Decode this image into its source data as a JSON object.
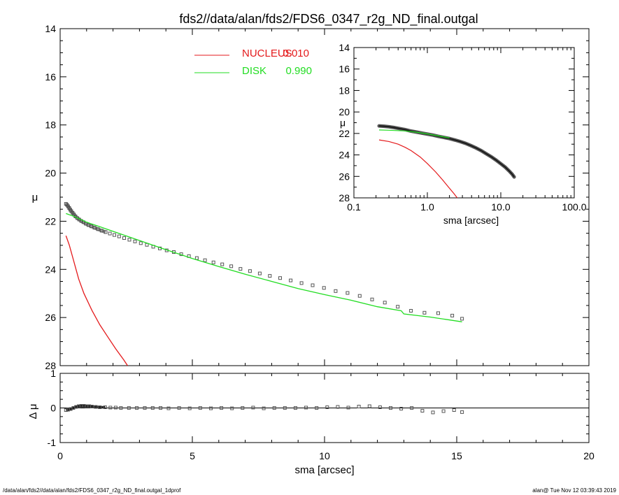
{
  "title": "fds2//data/alan/fds2/FDS6_0347_r2g_ND_final.outgal",
  "footer": {
    "left": "/data/alan/fds2//data/alan/fds2/FDS6_0347_r2g_ND_final.outgal_1dprof",
    "right": "alan@  Tue Nov 12 03:39:43 2019"
  },
  "colors": {
    "nucleus": "#e41a1c",
    "disk": "#22dd22",
    "data": "#555555"
  },
  "chart_data": [
    {
      "id": "main",
      "type": "scatter",
      "xlabel": "sma [arcsec]",
      "ylabel": "μ",
      "xlim": [
        0,
        20
      ],
      "ylim": [
        28,
        14
      ],
      "xticks": [
        "0",
        "5",
        "10",
        "15",
        "20"
      ],
      "yticks": [
        "14",
        "16",
        "18",
        "20",
        "22",
        "24",
        "26",
        "28"
      ],
      "legend": [
        {
          "label": "NUCLEUS",
          "value": "0.010",
          "color": "#e41a1c"
        },
        {
          "label": "DISK",
          "value": "0.990",
          "color": "#22dd22"
        }
      ],
      "series": [
        {
          "name": "data",
          "marker": "square",
          "x": [
            0.22,
            0.26,
            0.3,
            0.34,
            0.38,
            0.42,
            0.47,
            0.52,
            0.58,
            0.65,
            0.72,
            0.8,
            0.88,
            0.97,
            1.07,
            1.18,
            1.3,
            1.43,
            1.57,
            1.72,
            1.88,
            2.05,
            2.23,
            2.42,
            2.62,
            2.83,
            3.05,
            3.28,
            3.52,
            3.77,
            4.03,
            4.3,
            4.58,
            4.87,
            5.17,
            5.48,
            5.8,
            6.13,
            6.47,
            6.82,
            7.18,
            7.55,
            7.93,
            8.32,
            8.72,
            9.13,
            9.55,
            9.98,
            10.42,
            10.87,
            11.33,
            11.8,
            12.28,
            12.77,
            13.27,
            13.78,
            14.3,
            14.83,
            15.2
          ],
          "y": [
            21.28,
            21.32,
            21.38,
            21.45,
            21.52,
            21.58,
            21.65,
            21.72,
            21.8,
            21.87,
            21.93,
            21.99,
            22.04,
            22.1,
            22.16,
            22.21,
            22.27,
            22.33,
            22.39,
            22.45,
            22.51,
            22.57,
            22.63,
            22.7,
            22.77,
            22.84,
            22.91,
            22.98,
            23.06,
            23.13,
            23.21,
            23.28,
            23.37,
            23.45,
            23.53,
            23.62,
            23.71,
            23.79,
            23.87,
            23.98,
            24.07,
            24.17,
            24.27,
            24.36,
            24.46,
            24.57,
            24.66,
            24.77,
            24.9,
            24.98,
            25.1,
            25.25,
            25.38,
            25.55,
            25.72,
            25.8,
            25.82,
            25.92,
            26.05
          ]
        },
        {
          "name": "NUCLEUS",
          "color": "#e41a1c",
          "x": [
            0.22,
            0.35,
            0.5,
            0.7,
            0.9,
            1.2,
            1.5,
            1.8,
            2.1,
            2.4,
            2.55
          ],
          "y": [
            22.6,
            23.0,
            23.6,
            24.4,
            25.0,
            25.7,
            26.3,
            26.8,
            27.3,
            27.75,
            28.0
          ]
        },
        {
          "name": "DISK",
          "color": "#22dd22",
          "x": [
            0.22,
            0.5,
            1.0,
            1.5,
            2.0,
            3.0,
            4.0,
            5.0,
            6.0,
            7.0,
            8.0,
            9.0,
            10.0,
            11.0,
            12.0,
            12.9,
            13.0,
            14.0,
            15.2
          ],
          "y": [
            21.68,
            21.79,
            22.04,
            22.23,
            22.42,
            22.8,
            23.18,
            23.55,
            23.88,
            24.2,
            24.5,
            24.8,
            25.05,
            25.28,
            25.55,
            25.72,
            25.85,
            25.98,
            26.18
          ]
        }
      ]
    },
    {
      "id": "residual",
      "type": "scatter",
      "xlabel": "sma [arcsec]",
      "ylabel": "Δ μ",
      "xlim": [
        0,
        20
      ],
      "ylim": [
        -1,
        1
      ],
      "yticks": [
        "1",
        "0",
        "-1"
      ],
      "series": [
        {
          "name": "residual",
          "marker": "square",
          "x": [
            0.22,
            0.3,
            0.4,
            0.5,
            0.6,
            0.7,
            0.8,
            0.9,
            1.0,
            1.1,
            1.2,
            1.35,
            1.5,
            1.7,
            1.9,
            2.1,
            2.3,
            2.6,
            2.9,
            3.2,
            3.5,
            3.8,
            4.1,
            4.5,
            4.9,
            5.3,
            5.7,
            6.1,
            6.5,
            6.9,
            7.3,
            7.7,
            8.1,
            8.5,
            8.9,
            9.3,
            9.7,
            10.1,
            10.5,
            10.9,
            11.3,
            11.7,
            12.1,
            12.5,
            12.9,
            13.3,
            13.7,
            14.1,
            14.5,
            14.9,
            15.2
          ],
          "y": [
            -0.06,
            -0.05,
            -0.03,
            0.0,
            0.03,
            0.05,
            0.06,
            0.06,
            0.05,
            0.05,
            0.04,
            0.03,
            0.02,
            0.02,
            0.01,
            0.01,
            0.0,
            0.0,
            0.0,
            0.0,
            0.0,
            0.0,
            -0.01,
            0.0,
            -0.01,
            0.0,
            -0.01,
            0.0,
            -0.01,
            0.0,
            0.01,
            -0.01,
            0.0,
            0.0,
            0.0,
            0.01,
            0.0,
            0.02,
            0.03,
            0.01,
            0.04,
            0.05,
            0.02,
            0.0,
            -0.02,
            0.0,
            -0.08,
            -0.13,
            -0.09,
            -0.06,
            -0.12
          ]
        },
        {
          "name": "zero",
          "x": [
            0,
            20
          ],
          "y": [
            0,
            0
          ]
        }
      ]
    },
    {
      "id": "inset",
      "type": "scatter",
      "xlabel": "sma [arcsec]",
      "ylabel": "μ",
      "xscale": "log",
      "xlim": [
        0.1,
        100
      ],
      "ylim": [
        28,
        14
      ],
      "xticks": [
        "0.1",
        "1.0",
        "10.0",
        "100.0"
      ],
      "yticks": [
        "14",
        "16",
        "18",
        "20",
        "22",
        "24",
        "26",
        "28"
      ],
      "series": [
        {
          "name": "data",
          "x": [
            0.22,
            0.26,
            0.3,
            0.35,
            0.42,
            0.5,
            0.6,
            0.72,
            0.86,
            1.0,
            1.2,
            1.4,
            1.7,
            2.0,
            2.4,
            2.8,
            3.3,
            3.9,
            4.6,
            5.4,
            6.3,
            7.4,
            8.6,
            10.0,
            11.5,
            13.0,
            14.3,
            15.2
          ],
          "y": [
            21.3,
            21.33,
            21.38,
            21.45,
            21.55,
            21.65,
            21.78,
            21.88,
            21.98,
            22.06,
            22.16,
            22.26,
            22.38,
            22.48,
            22.62,
            22.76,
            22.92,
            23.13,
            23.35,
            23.6,
            23.88,
            24.17,
            24.48,
            24.82,
            25.15,
            25.5,
            25.8,
            26.05
          ]
        },
        {
          "name": "NUCLEUS",
          "color": "#e41a1c",
          "x": [
            0.22,
            0.3,
            0.4,
            0.5,
            0.6,
            0.8,
            1.0,
            1.3,
            1.6,
            2.0,
            2.3,
            2.55
          ],
          "y": [
            22.6,
            22.75,
            23.0,
            23.3,
            23.6,
            24.2,
            24.8,
            25.6,
            26.3,
            27.1,
            27.6,
            28.0
          ]
        },
        {
          "name": "DISK",
          "color": "#22dd22",
          "x": [
            0.22,
            0.3,
            0.5,
            0.7,
            1.0,
            1.5,
            2.0
          ],
          "y": [
            21.68,
            21.7,
            21.77,
            21.88,
            22.04,
            22.26,
            22.42
          ]
        }
      ]
    }
  ]
}
